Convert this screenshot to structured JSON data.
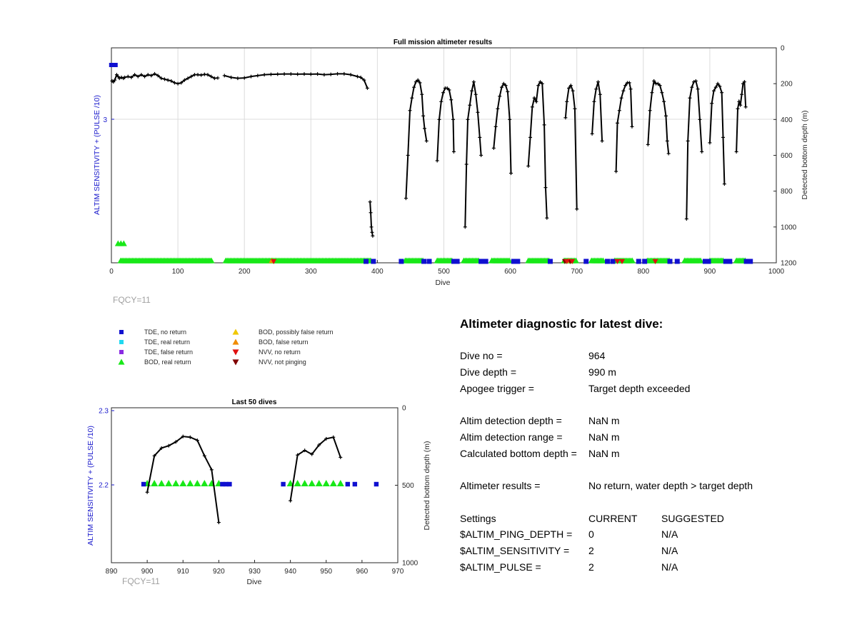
{
  "plots": {
    "full": {
      "title": "Full mission altimeter results",
      "xlabel": "Dive",
      "ylabel_left": "ALTIM SENSITIVITY + (PULSE /10)",
      "ylabel_right": "Detected bottom depth (m)",
      "footer": "FQCY=11"
    },
    "last": {
      "title": "Last 50 dives",
      "xlabel": "Dive",
      "ylabel_left": "ALTIM SENSITIVITY + (PULSE /10)",
      "ylabel_right": "Detected bottom depth (m)",
      "footer": "FQCY=11"
    }
  },
  "legend": [
    {
      "label": "TDE, no return",
      "marker": "square",
      "color": "#1010d0"
    },
    {
      "label": "TDE, real return",
      "marker": "square",
      "color": "#20d8f0"
    },
    {
      "label": "TDE, false return",
      "marker": "square",
      "color": "#8a2be2"
    },
    {
      "label": "BOD, real return",
      "marker": "triangle-up",
      "color": "#18e818"
    },
    {
      "label": "BOD, possibly false return",
      "marker": "triangle-up",
      "color": "#f0c800"
    },
    {
      "label": "BOD, false return",
      "marker": "triangle-up",
      "color": "#f08c00"
    },
    {
      "label": "NVV, no return",
      "marker": "triangle-down",
      "color": "#e01010"
    },
    {
      "label": "NVV, not pinging",
      "marker": "triangle-down",
      "color": "#800000"
    }
  ],
  "diagnostic": {
    "heading": "Altimeter diagnostic for latest dive:",
    "rows": [
      {
        "label": "Dive no =",
        "value": "964"
      },
      {
        "label": "Dive depth =",
        "value": "990 m"
      },
      {
        "label": "Apogee trigger =",
        "value": "Target depth exceeded"
      },
      {
        "label": "Altim detection depth =",
        "value": "NaN m"
      },
      {
        "label": "Altim detection range =",
        "value": "NaN m"
      },
      {
        "label": "Calculated bottom depth =",
        "value": "NaN m"
      },
      {
        "label": "Altimeter results =",
        "value": "No return, water depth > target depth"
      }
    ],
    "settings": {
      "header": {
        "label": "Settings",
        "current": "CURRENT",
        "suggested": "SUGGESTED"
      },
      "rows": [
        {
          "label": "$ALTIM_PING_DEPTH =",
          "current": "0",
          "suggested": "N/A"
        },
        {
          "label": "$ALTIM_SENSITIVITY =",
          "current": "2",
          "suggested": "N/A"
        },
        {
          "label": "$ALTIM_PULSE =",
          "current": "2",
          "suggested": "N/A"
        }
      ]
    }
  },
  "chart_data": [
    {
      "type": "scatter",
      "title": "Full mission altimeter results",
      "xlabel": "Dive",
      "ylabel": "ALTIM SENSITIVITY + (PULSE /10)",
      "y2label": "Detected bottom depth (m)",
      "xlim": [
        0,
        1000
      ],
      "xticks": [
        0,
        100,
        200,
        300,
        400,
        500,
        600,
        700,
        800,
        900,
        1000
      ],
      "yticks_left": [
        "3"
      ],
      "y2lim": [
        0,
        1200
      ],
      "y2ticks": [
        0,
        200,
        400,
        600,
        800,
        1000,
        1200
      ],
      "grid": true,
      "bottom_depth_segments": [
        {
          "x": [
            1,
            3,
            5,
            8,
            10,
            12,
            15,
            18,
            20,
            25,
            30,
            35,
            40,
            45,
            50,
            55,
            60,
            65,
            70,
            75,
            80,
            85,
            90,
            95,
            100,
            105,
            110,
            115,
            120,
            125,
            130,
            135,
            140,
            145,
            150,
            155,
            160
          ],
          "y": [
            185,
            190,
            180,
            150,
            160,
            170,
            165,
            170,
            165,
            160,
            165,
            150,
            160,
            150,
            160,
            150,
            155,
            145,
            155,
            170,
            175,
            180,
            185,
            195,
            200,
            195,
            180,
            170,
            160,
            150,
            150,
            152,
            148,
            150,
            160,
            170,
            168
          ]
        },
        {
          "x": [
            170,
            180,
            190,
            200,
            210,
            220,
            230,
            240,
            250,
            260,
            270,
            280,
            290,
            300,
            310,
            320,
            330,
            340,
            350,
            360,
            370,
            375,
            380,
            385
          ],
          "y": [
            155,
            165,
            170,
            168,
            160,
            155,
            150,
            148,
            147,
            146,
            146,
            147,
            146,
            147,
            146,
            150,
            148,
            145,
            145,
            150,
            160,
            165,
            180,
            225
          ]
        },
        {
          "x": [
            389,
            390,
            391,
            392,
            393
          ],
          "y": [
            860,
            920,
            1000,
            1030,
            1050
          ]
        },
        {
          "x": [
            443,
            446,
            449,
            452,
            455,
            458,
            461,
            464,
            467,
            469,
            471,
            474
          ],
          "y": [
            840,
            600,
            350,
            280,
            220,
            190,
            180,
            195,
            260,
            380,
            450,
            520
          ]
        },
        {
          "x": [
            490,
            493,
            496,
            499,
            502,
            505,
            508,
            511,
            514,
            515
          ],
          "y": [
            630,
            400,
            300,
            250,
            225,
            225,
            235,
            290,
            400,
            580
          ]
        },
        {
          "x": [
            532,
            534,
            536,
            539,
            542,
            545,
            548,
            551,
            554,
            556
          ],
          "y": [
            1000,
            650,
            400,
            320,
            240,
            190,
            260,
            360,
            500,
            600
          ]
        },
        {
          "x": [
            575,
            578,
            581,
            584,
            587,
            590,
            593,
            596,
            599,
            601
          ],
          "y": [
            560,
            440,
            340,
            270,
            220,
            200,
            210,
            245,
            400,
            700
          ]
        },
        {
          "x": [
            627,
            630,
            633,
            636,
            639,
            642,
            645,
            648,
            651,
            653,
            655
          ],
          "y": [
            660,
            500,
            330,
            280,
            300,
            210,
            190,
            200,
            430,
            780,
            950
          ]
        },
        {
          "x": [
            683,
            685,
            688,
            691,
            694,
            697,
            700
          ],
          "y": [
            390,
            300,
            225,
            210,
            240,
            340,
            900
          ]
        },
        {
          "x": [
            723,
            726,
            729,
            732,
            735,
            738
          ],
          "y": [
            480,
            300,
            230,
            190,
            260,
            520
          ]
        },
        {
          "x": [
            759,
            761,
            764,
            767,
            770,
            773,
            776,
            779,
            781,
            783
          ],
          "y": [
            690,
            420,
            350,
            280,
            240,
            210,
            195,
            195,
            230,
            440
          ]
        },
        {
          "x": [
            807,
            810,
            813,
            816,
            819,
            822,
            825,
            828,
            831,
            834,
            836,
            838
          ],
          "y": [
            540,
            350,
            250,
            185,
            200,
            200,
            210,
            250,
            300,
            380,
            520,
            590
          ]
        },
        {
          "x": [
            865,
            867,
            870,
            873,
            876,
            879,
            882,
            885,
            888
          ],
          "y": [
            955,
            520,
            280,
            220,
            190,
            185,
            230,
            400,
            580
          ]
        },
        {
          "x": [
            900,
            903,
            906,
            909,
            912,
            915,
            918,
            920,
            922
          ],
          "y": [
            530,
            310,
            240,
            220,
            200,
            215,
            250,
            500,
            760
          ]
        },
        {
          "x": [
            940,
            942,
            944,
            946,
            948,
            950,
            952,
            954
          ],
          "y": [
            580,
            340,
            300,
            320,
            260,
            200,
            190,
            330
          ]
        }
      ],
      "bod_real_return_ranges": [
        [
          14,
          152
        ],
        [
          172,
          390
        ],
        [
          442,
          470
        ],
        [
          490,
          512
        ],
        [
          530,
          553
        ],
        [
          572,
          600
        ],
        [
          627,
          660
        ],
        [
          681,
          700
        ],
        [
          722,
          740
        ],
        [
          757,
          785
        ],
        [
          806,
          840
        ],
        [
          862,
          888
        ],
        [
          900,
          922
        ],
        [
          940,
          955
        ]
      ],
      "bod_real_return_early_point": {
        "x": 10,
        "y": "above baseline"
      },
      "tde_no_return_x": [
        383,
        394,
        436,
        470,
        478,
        515,
        520,
        556,
        563,
        605,
        611,
        660,
        714,
        746,
        754,
        793,
        802,
        840,
        851,
        893,
        898,
        924,
        930,
        955,
        961
      ],
      "tde_no_return_early_top": {
        "x": 3
      },
      "nvv_no_return_x": [
        244,
        685,
        693,
        761,
        768,
        818
      ],
      "nvv_not_pinging_x": [
        682,
        690
      ],
      "bod_false_return_x": [
        241,
        688
      ]
    },
    {
      "type": "scatter",
      "title": "Last 50 dives",
      "xlabel": "Dive",
      "ylabel": "ALTIM SENSITIVITY + (PULSE /10)",
      "y2label": "Detected bottom depth (m)",
      "xlim": [
        890,
        970
      ],
      "xticks": [
        890,
        900,
        910,
        920,
        930,
        940,
        950,
        960,
        970
      ],
      "ylim": [
        2.1,
        2.3
      ],
      "yticks_left": [
        "2.2",
        "2.3"
      ],
      "y2lim": [
        0,
        1000
      ],
      "y2ticks": [
        0,
        500,
        1000
      ],
      "bottom_depth_series": [
        {
          "x": [
            900,
            902,
            904,
            906,
            908,
            910,
            912,
            914,
            916,
            918,
            920
          ],
          "y": [
            545,
            310,
            260,
            245,
            220,
            185,
            190,
            210,
            310,
            400,
            740
          ]
        },
        {
          "x": [
            940,
            942,
            944,
            946,
            948,
            950,
            952,
            954
          ],
          "y": [
            600,
            305,
            275,
            300,
            240,
            200,
            190,
            320
          ]
        }
      ],
      "bod_real_return_x": [
        900,
        902,
        904,
        906,
        908,
        910,
        912,
        914,
        916,
        918,
        920,
        940,
        942,
        944,
        946,
        948,
        950,
        952,
        954
      ],
      "tde_no_return_x": [
        899,
        921,
        922,
        923,
        938,
        956,
        958,
        964
      ]
    }
  ]
}
